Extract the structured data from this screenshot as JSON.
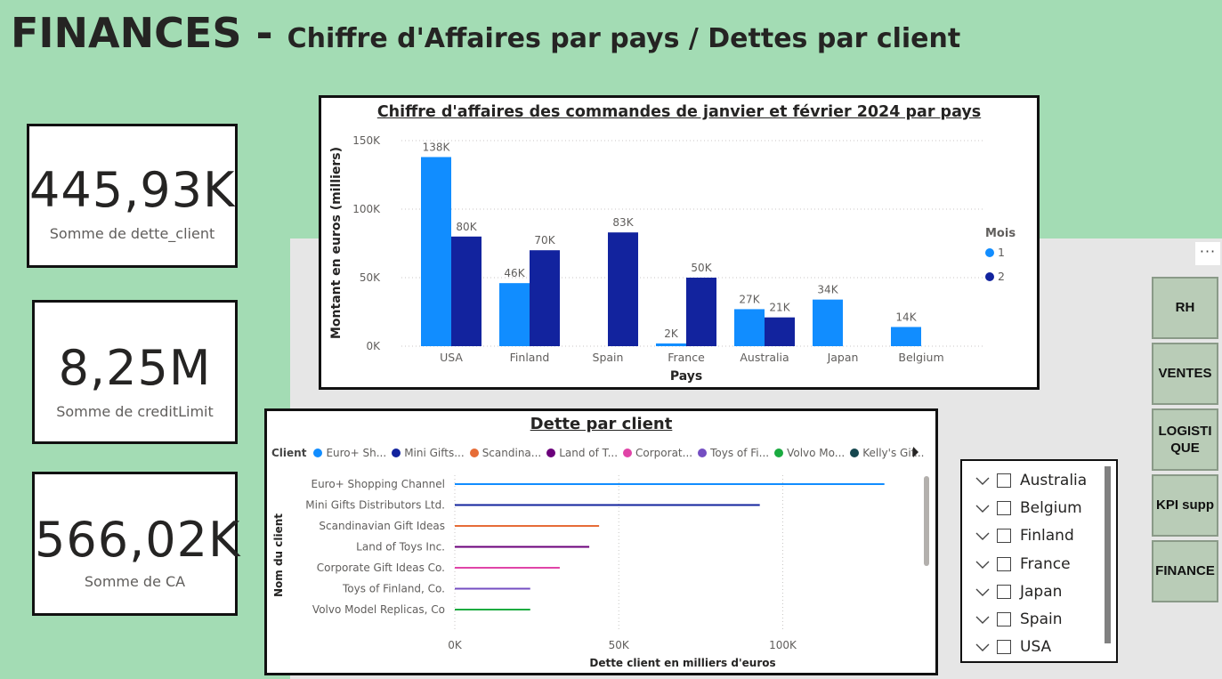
{
  "header": {
    "title": "FINANCES - ",
    "subtitle": "Chiffre d'Affaires par pays / Dettes par client"
  },
  "kpis": [
    {
      "value": "445,93K",
      "label": "Somme de dette_client"
    },
    {
      "value": "8,25M",
      "label": "Somme de creditLimit"
    },
    {
      "value": "566,02K",
      "label": "Somme de CA"
    }
  ],
  "nav": {
    "more": "···",
    "buttons": [
      "RH",
      "VENTES",
      "LOGISTI QUE",
      "KPI supp",
      "FINANCE"
    ]
  },
  "slicer": {
    "items": [
      "Australia",
      "Belgium",
      "Finland",
      "France",
      "Japan",
      "Spain",
      "USA"
    ]
  },
  "colors": {
    "month1": "#118dff",
    "month2": "#12239e",
    "background": "#a3dcb4"
  },
  "chart_data": [
    {
      "type": "bar",
      "title": "Chiffre d'affaires des commandes de janvier et février 2024 par pays",
      "xlabel": "Pays",
      "ylabel": "Montant en euros (milliers)",
      "categories": [
        "USA",
        "Finland",
        "Spain",
        "France",
        "Australia",
        "Japan",
        "Belgium"
      ],
      "ylim": [
        0,
        150000
      ],
      "yticks": [
        "0K",
        "50K",
        "100K",
        "150K"
      ],
      "legend_title": "Mois",
      "legend_position": "right",
      "grid": true,
      "series": [
        {
          "name": "1",
          "values": [
            138000,
            46000,
            null,
            2000,
            27000,
            34000,
            14000
          ],
          "labels": [
            "138K",
            "46K",
            "",
            "2K",
            "27K",
            "34K",
            "14K"
          ]
        },
        {
          "name": "2",
          "values": [
            80000,
            70000,
            83000,
            50000,
            21000,
            null,
            null
          ],
          "labels": [
            "80K",
            "70K",
            "83K",
            "50K",
            "21K",
            "",
            ""
          ]
        }
      ]
    },
    {
      "type": "bar",
      "orientation": "horizontal",
      "title": "Dette par client",
      "xlabel": "Dette client en milliers d'euros",
      "ylabel": "Nom du client",
      "legend_title": "Client",
      "legend_position": "top",
      "legend_entries": [
        "Euro+ Sh...",
        "Mini Gifts...",
        "Scandina...",
        "Land of T...",
        "Corporat...",
        "Toys of Fi...",
        "Volvo Mo...",
        "Kelly's Gif..."
      ],
      "legend_colors": [
        "#118dff",
        "#12239e",
        "#e66c37",
        "#6b007b",
        "#e044a7",
        "#744ec2",
        "#1aab40",
        "#15474f"
      ],
      "categories": [
        "Euro+ Shopping Channel",
        "Mini Gifts Distributors Ltd.",
        "Scandinavian Gift Ideas",
        "Land of Toys Inc.",
        "Corporate Gift Ideas Co.",
        "Toys of Finland, Co.",
        "Volvo Model Replicas, Co"
      ],
      "values": [
        131000,
        93000,
        44000,
        41000,
        32000,
        23000,
        23000
      ],
      "colors": [
        "#118dff",
        "#12239e",
        "#e66c37",
        "#6b007b",
        "#e044a7",
        "#744ec2",
        "#1aab40"
      ],
      "xlim": [
        0,
        130000
      ],
      "xticks": [
        "0K",
        "50K",
        "100K"
      ],
      "grid": true
    }
  ]
}
